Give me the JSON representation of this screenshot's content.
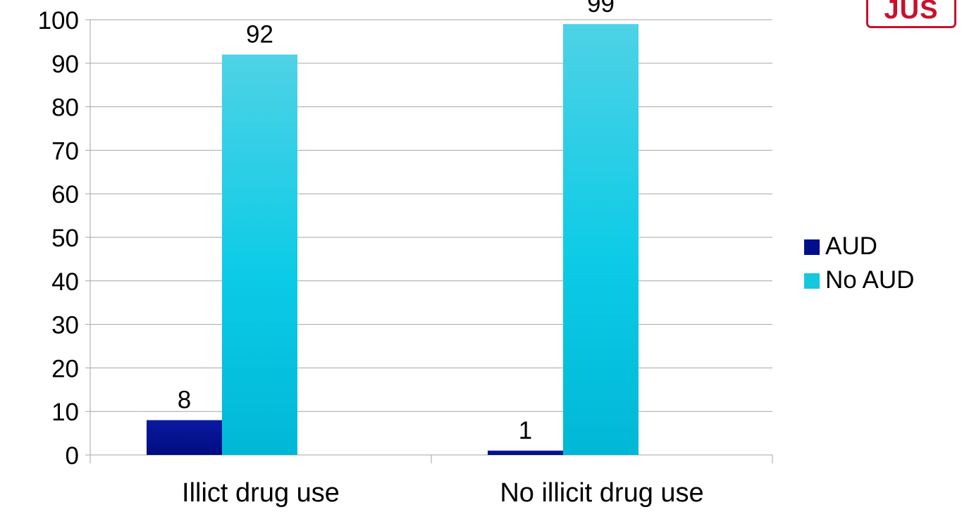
{
  "logo": {
    "text": "JUS",
    "color": "#c8102e"
  },
  "chart_data": {
    "type": "bar",
    "categories": [
      "Illict drug use",
      "No illicit drug use"
    ],
    "series": [
      {
        "name": "AUD",
        "values": [
          8,
          1
        ],
        "color": "#000f8c"
      },
      {
        "name": "No AUD",
        "values": [
          92,
          99
        ],
        "color": "#14c8e0"
      }
    ],
    "data_labels": [
      [
        "8",
        "1"
      ],
      [
        "92",
        "99"
      ]
    ],
    "title": "",
    "xlabel": "",
    "ylabel": "",
    "ylim": [
      0,
      100
    ],
    "yticks": [
      0,
      10,
      20,
      30,
      40,
      50,
      60,
      70,
      80,
      90,
      100
    ],
    "grid": true,
    "legend": "right"
  }
}
